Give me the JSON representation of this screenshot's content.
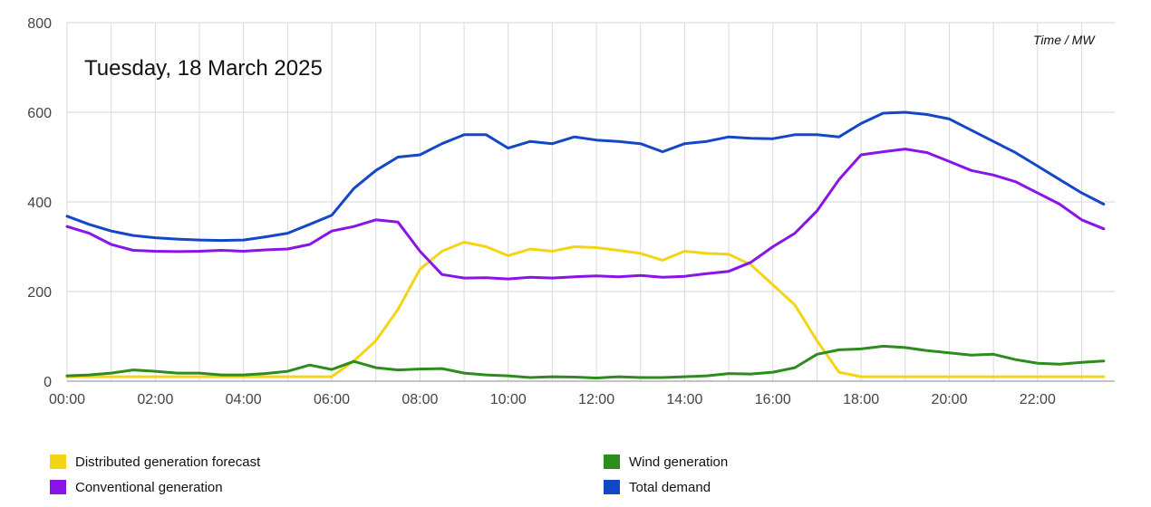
{
  "chart_data": {
    "type": "line",
    "title": "Tuesday, 18 March 2025",
    "units_note": "Time / MW",
    "xlabel": "",
    "ylabel": "",
    "ylim": [
      0,
      800
    ],
    "y_ticks": [
      "0",
      "200",
      "400",
      "600",
      "800"
    ],
    "x_ticks": [
      "00:00",
      "02:00",
      "04:00",
      "06:00",
      "08:00",
      "10:00",
      "12:00",
      "14:00",
      "16:00",
      "18:00",
      "20:00",
      "22:00"
    ],
    "grid": true,
    "legend_position": "bottom",
    "x": [
      "00:00",
      "00:30",
      "01:00",
      "01:30",
      "02:00",
      "02:30",
      "03:00",
      "03:30",
      "04:00",
      "04:30",
      "05:00",
      "05:30",
      "06:00",
      "06:30",
      "07:00",
      "07:30",
      "08:00",
      "08:30",
      "09:00",
      "09:30",
      "10:00",
      "10:30",
      "11:00",
      "11:30",
      "12:00",
      "12:30",
      "13:00",
      "13:30",
      "14:00",
      "14:30",
      "15:00",
      "15:30",
      "16:00",
      "16:30",
      "17:00",
      "17:30",
      "18:00",
      "18:30",
      "19:00",
      "19:30",
      "20:00",
      "20:30",
      "21:00",
      "21:30",
      "22:00",
      "22:30",
      "23:00",
      "23:30"
    ],
    "series": [
      {
        "name": "Distributed generation forecast",
        "color": "#f5d416",
        "values": [
          10,
          10,
          10,
          10,
          10,
          10,
          10,
          10,
          10,
          10,
          10,
          10,
          10,
          45,
          90,
          160,
          250,
          290,
          310,
          300,
          280,
          295,
          290,
          300,
          298,
          292,
          285,
          270,
          290,
          285,
          283,
          260,
          215,
          170,
          90,
          20,
          10,
          10,
          10,
          10,
          10,
          10,
          10,
          10,
          10,
          10,
          10,
          10
        ]
      },
      {
        "name": "Wind generation",
        "color": "#2e8b1e",
        "values": [
          12,
          14,
          18,
          25,
          22,
          18,
          18,
          14,
          14,
          17,
          22,
          36,
          26,
          44,
          30,
          25,
          27,
          28,
          18,
          14,
          12,
          8,
          10,
          9,
          7,
          10,
          8,
          8,
          10,
          12,
          17,
          16,
          20,
          30,
          60,
          70,
          72,
          78,
          75,
          68,
          63,
          58,
          60,
          48,
          40,
          38,
          42,
          45
        ]
      },
      {
        "name": "Conventional generation",
        "color": "#8a14e8",
        "values": [
          345,
          330,
          305,
          292,
          290,
          289,
          290,
          292,
          290,
          293,
          295,
          305,
          335,
          345,
          360,
          355,
          290,
          238,
          230,
          231,
          228,
          232,
          230,
          233,
          235,
          233,
          236,
          232,
          234,
          240,
          245,
          265,
          300,
          330,
          380,
          450,
          505,
          512,
          518,
          510,
          490,
          470,
          460,
          445,
          420,
          395,
          360,
          340
        ]
      },
      {
        "name": "Total demand",
        "color": "#1447c8",
        "values": [
          368,
          350,
          335,
          325,
          320,
          317,
          315,
          314,
          315,
          322,
          330,
          350,
          370,
          430,
          470,
          500,
          505,
          530,
          550,
          550,
          520,
          535,
          530,
          545,
          538,
          535,
          530,
          512,
          530,
          535,
          545,
          542,
          541,
          550,
          550,
          545,
          575,
          598,
          600,
          595,
          585,
          560,
          535,
          510,
          480,
          450,
          420,
          395
        ]
      }
    ]
  }
}
